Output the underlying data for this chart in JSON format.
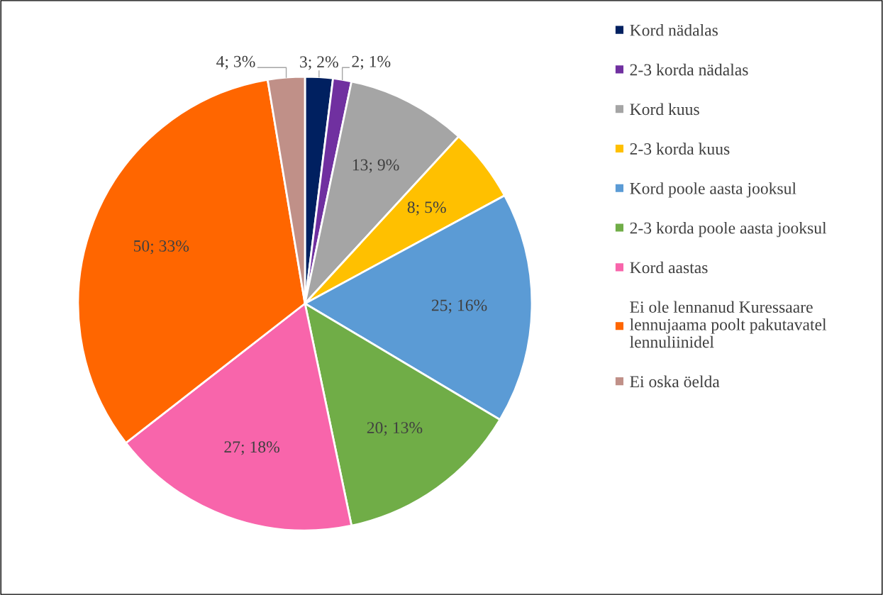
{
  "chart_data": {
    "type": "pie",
    "categories": [
      "Kord nädalas",
      "2-3 korda nädalas",
      "Kord kuus",
      "2-3 korda kuus",
      "Kord poole aasta jooksul",
      "2-3 korda poole aasta jooksul",
      "Kord aastas",
      "Ei ole lennanud Kuressaare lennujaama poolt pakutavatel lennuliinidel",
      "Ei oska öelda"
    ],
    "values": [
      3,
      2,
      13,
      8,
      25,
      20,
      27,
      50,
      4
    ],
    "value_labels": [
      "3; 2%",
      "2; 1%",
      "13; 9%",
      "8; 5%",
      "25; 16%",
      "20; 13%",
      "27; 18%",
      "50; 33%",
      "4; 3%"
    ],
    "colors": [
      "#002060",
      "#7030a0",
      "#a5a5a5",
      "#ffc000",
      "#5b9bd5",
      "#70ad47",
      "#f865ab",
      "#ff6600",
      "#c09088"
    ],
    "legend": "right"
  }
}
